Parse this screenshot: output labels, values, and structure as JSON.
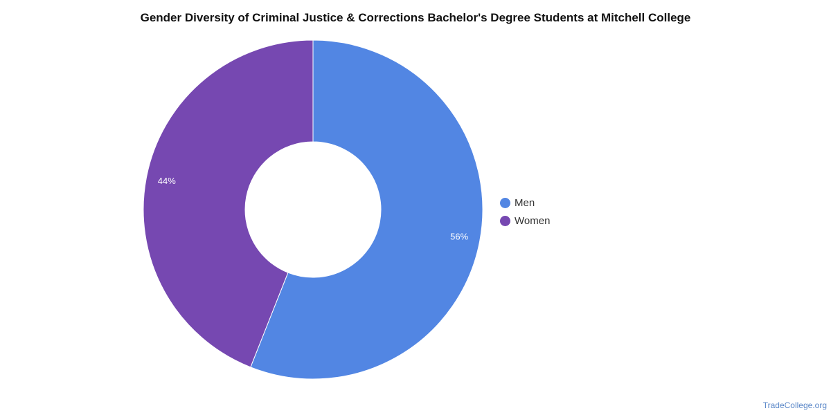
{
  "title": "Gender Diversity of Criminal Justice & Corrections Bachelor's Degree Students at Mitchell College",
  "source": "TradeCollege.org",
  "chart_data": {
    "type": "pie",
    "style": "donut",
    "title": "Gender Diversity of Criminal Justice & Corrections Bachelor's Degree Students at Mitchell College",
    "categories": [
      "Men",
      "Women"
    ],
    "values": [
      56,
      44
    ],
    "labels": [
      "56%",
      "44%"
    ],
    "colors": [
      "#5286e3",
      "#7648b1"
    ],
    "legend": [
      "Men",
      "Women"
    ],
    "legend_position": "right"
  }
}
